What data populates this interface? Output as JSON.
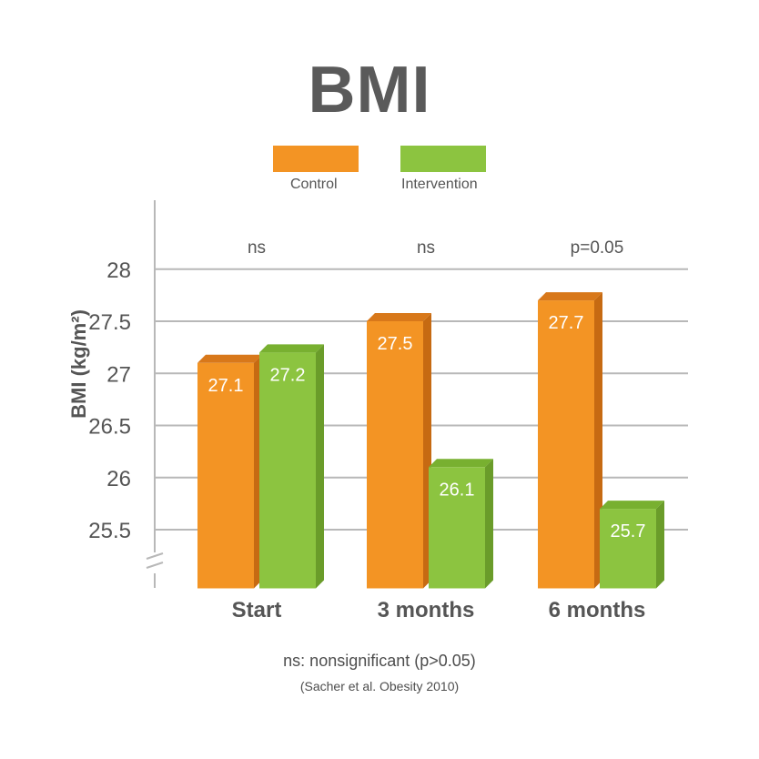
{
  "chart_data": {
    "type": "bar",
    "title": "BMI",
    "ylabel": "BMI (kg/m²)",
    "xlabel": "",
    "categories": [
      "Start",
      "3 months",
      "6 months"
    ],
    "series": [
      {
        "name": "Control",
        "values": [
          27.1,
          27.5,
          27.7
        ],
        "color": "#f39424"
      },
      {
        "name": "Intervention",
        "values": [
          27.2,
          26.1,
          25.7
        ],
        "color": "#8cc440"
      }
    ],
    "data_labels": {
      "Control": [
        "27.1",
        "27.5",
        "27.7"
      ],
      "Intervention": [
        "27.2",
        "26.1",
        "25.7"
      ]
    },
    "significance": [
      "ns",
      "ns",
      "p=0.05"
    ],
    "yticks": [
      25.5,
      26,
      26.5,
      27,
      27.5,
      28
    ],
    "ytick_labels": [
      "25.5",
      "26",
      "26.5",
      "27",
      "27.5",
      "28"
    ],
    "ylim": [
      24.9,
      28.6
    ],
    "axis_break": true,
    "grid": true,
    "legend_position": "top-center"
  },
  "footnotes": {
    "definition": "ns: nonsignificant (p>0.05)",
    "source": "(Sacher et al. Obesity 2010)"
  },
  "colors": {
    "control": "#f39424",
    "control_top": "#d8781a",
    "control_side": "#c66a12",
    "intervention": "#8cc440",
    "intervention_top": "#78b030",
    "intervention_side": "#6a9c2a",
    "grid": "#b8b8b8",
    "text": "#555555"
  }
}
